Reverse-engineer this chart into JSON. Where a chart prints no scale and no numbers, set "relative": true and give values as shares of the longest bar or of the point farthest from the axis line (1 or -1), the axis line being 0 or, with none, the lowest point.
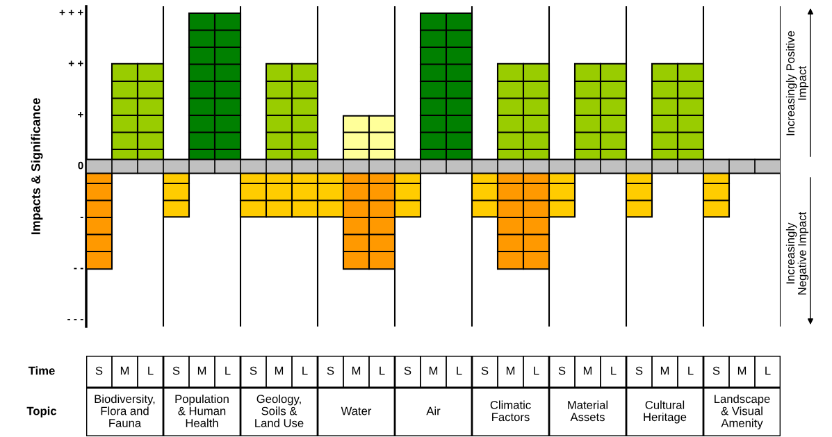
{
  "chart_data": {
    "type": "bar",
    "relative": true,
    "ylabel": "Impacts & Significance",
    "categories": [
      "S",
      "M",
      "L",
      "S",
      "M",
      "L",
      "S",
      "M",
      "L",
      "S",
      "M",
      "L",
      "S",
      "M",
      "L",
      "S",
      "M",
      "L",
      "S",
      "M",
      "L",
      "S",
      "M",
      "L",
      "S",
      "M",
      "L"
    ],
    "series": [
      {
        "values": [
          null,
          0.67,
          0.67,
          null,
          1,
          1,
          null,
          0.67,
          0.67,
          null,
          0.33,
          0.33,
          null,
          1,
          1,
          null,
          0.67,
          0.67,
          null,
          0.67,
          0.67,
          null,
          0.67,
          0.67,
          null,
          null,
          null
        ],
        "colors": [
          null,
          "#99cc00",
          "#99cc00",
          null,
          "#008000",
          "#008000",
          null,
          "#99cc00",
          "#99cc00",
          null,
          "#ffff99",
          "#ffff99",
          null,
          "#008000",
          "#008000",
          null,
          "#99cc00",
          "#99cc00",
          null,
          "#99cc00",
          "#99cc00",
          null,
          "#99cc00",
          "#99cc00",
          null,
          null,
          null
        ]
      },
      {
        "values": [
          -0.67,
          null,
          null,
          -0.33,
          null,
          null,
          -0.33,
          -0.33,
          -0.33,
          -0.33,
          -0.67,
          -0.67,
          -0.33,
          null,
          null,
          -0.33,
          -0.67,
          -0.67,
          -0.33,
          null,
          null,
          -0.33,
          null,
          null,
          -0.33,
          null,
          null
        ],
        "colors": [
          "#ff9900",
          null,
          null,
          "#ffcc00",
          null,
          null,
          "#ffcc00",
          "#ffcc00",
          "#ffcc00",
          "#ffcc00",
          "#ff9900",
          "#ff9900",
          "#ffcc00",
          null,
          null,
          "#ffcc00",
          "#ff9900",
          "#ff9900",
          "#ffcc00",
          null,
          null,
          "#ffcc00",
          null,
          null,
          "#ffcc00",
          null,
          null
        ]
      }
    ],
    "bands": [
      {
        "axis": "y",
        "from": -0.045,
        "to": 0.045,
        "color": "#c0c0c0"
      }
    ],
    "annotations": [
      "Time",
      "Topic",
      "Biodiversity,\nFlora and\nFauna",
      "Population\n& Human\nHealth",
      "Geology,\nSoils &\nLand Use",
      "Water",
      "Air",
      "Climatic\nFactors",
      "Material\nAssets",
      "Cultural\nHeritage",
      "Landscape\n& Visual\nAmenity",
      "Increasingly Positive\nImpact",
      "Increasingly\nNegative Impact",
      "+ + +",
      "+ +",
      "+",
      "0",
      "-",
      "- -",
      "- - -"
    ]
  }
}
